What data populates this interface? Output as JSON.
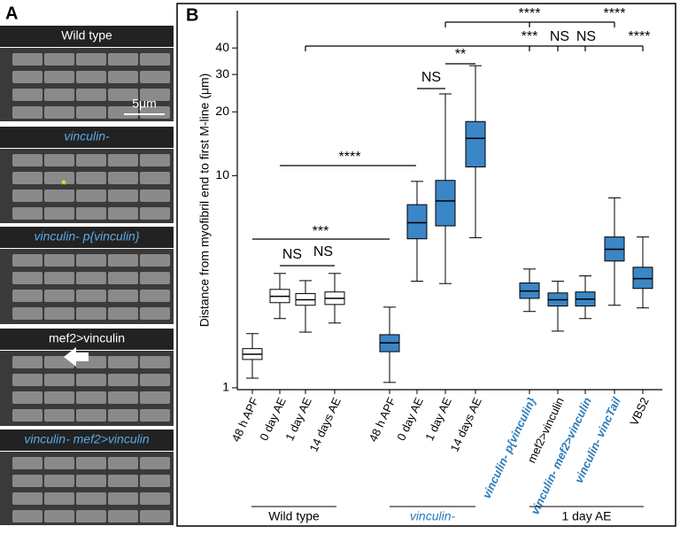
{
  "panel_a": {
    "letter": "A",
    "labels": [
      "Wild type",
      "vinculin-",
      "vinculin- p{vinculin}",
      "mef2>vinculin",
      "vinculin- mef2>vinculin"
    ],
    "scale_bar": "5μm",
    "marker": "*"
  },
  "chart_data": {
    "type": "box",
    "panel_letter": "B",
    "y_label": "Distance from myofibril end to first M-line (μm)",
    "log_scale": true,
    "ylim": [
      0.98,
      60
    ],
    "yticks": [
      1,
      10,
      20,
      30,
      40
    ],
    "categories": [
      "48 h APF",
      "0 day AE",
      "1 day AE",
      "14 days AE",
      "48 h APF",
      "0 day AE",
      "1 day AE",
      "14 days AE",
      "vinculin- p{vinculin}",
      "mef2>vinculin",
      "vinculin- mef2>vinculin",
      "vinculin- vincTail",
      "VBS2"
    ],
    "median": [
      1.44,
      2.7,
      2.6,
      2.64,
      1.63,
      6.0,
      7.6,
      15,
      2.86,
      2.6,
      2.62,
      4.5,
      3.27
    ],
    "q1": [
      1.36,
      2.52,
      2.45,
      2.47,
      1.48,
      5.04,
      5.8,
      11,
      2.64,
      2.43,
      2.43,
      3.96,
      2.94
    ],
    "q3": [
      1.53,
      2.91,
      2.78,
      2.83,
      1.78,
      7.3,
      9.5,
      18,
      3.12,
      2.8,
      2.83,
      5.14,
      3.7
    ],
    "whisker_low": [
      1.11,
      2.12,
      1.83,
      2.02,
      1.06,
      3.18,
      3.1,
      5.1,
      2.29,
      1.85,
      2.12,
      2.45,
      2.38
    ],
    "whisker_high": [
      1.8,
      3.46,
      3.2,
      3.46,
      2.4,
      9.4,
      24.3,
      33,
      3.63,
      3.18,
      3.37,
      7.86,
      5.14
    ],
    "box_colors": [
      "#ffffff",
      "#ffffff",
      "#ffffff",
      "#ffffff",
      "#3b86c6",
      "#3b86c6",
      "#3b86c6",
      "#3b86c6",
      "#3b86c6",
      "#3b86c6",
      "#3b86c6",
      "#3b86c6",
      "#3b86c6"
    ],
    "label_colors": [
      "#000000",
      "#000000",
      "#000000",
      "#000000",
      "#000000",
      "#000000",
      "#000000",
      "#000000",
      "#2a7ab8",
      "#000000",
      "#2a7ab8",
      "#2a7ab8",
      "#000000"
    ],
    "groups": [
      "Wild type",
      "vinculin-",
      "1 day AE"
    ],
    "annotations": [
      "****",
      "***",
      "NS",
      "NS",
      "NS",
      "**",
      "***",
      "NS",
      "NS",
      "****",
      "****",
      "****"
    ]
  }
}
